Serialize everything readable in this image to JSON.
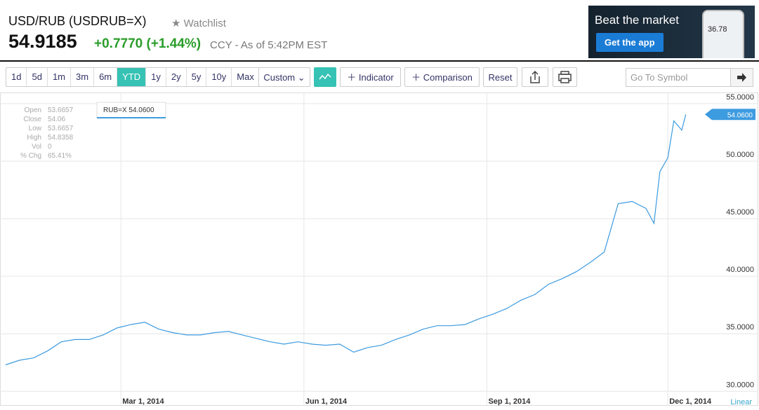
{
  "header": {
    "symbol": "USD/RUB (USDRUB=X)",
    "watchlist": "Watchlist",
    "price": "54.9185",
    "change": "+0.7770",
    "change_pct": "(+1.44%)",
    "meta": "CCY - As of 5:42PM EST"
  },
  "ad": {
    "headline": "Beat the market",
    "button": "Get the app",
    "phone_value": "36.78"
  },
  "toolbar": {
    "ranges": [
      "1d",
      "5d",
      "1m",
      "3m",
      "6m",
      "YTD",
      "1y",
      "2y",
      "5y",
      "10y",
      "Max"
    ],
    "active_range": 5,
    "custom": "Custom",
    "indicator": "Indicator",
    "comparison": "Comparison",
    "reset": "Reset",
    "search_placeholder": "Go To Symbol"
  },
  "info_panel": {
    "labels": [
      "Open",
      "Close",
      "Low",
      "High",
      "Vol",
      "% Chg"
    ],
    "values": [
      "53.6657",
      "54.06",
      "53.6657",
      "54.8358",
      "0",
      "65.41%"
    ]
  },
  "tooltip": "RUB=X 54.0600",
  "chart_data": {
    "type": "line",
    "color": "#3d9be0",
    "x": [
      "2014-01-02",
      "2014-01-09",
      "2014-01-16",
      "2014-01-23",
      "2014-01-30",
      "2014-02-06",
      "2014-02-13",
      "2014-02-20",
      "2014-02-27",
      "2014-03-06",
      "2014-03-13",
      "2014-03-20",
      "2014-03-27",
      "2014-04-03",
      "2014-04-10",
      "2014-04-17",
      "2014-04-24",
      "2014-05-01",
      "2014-05-08",
      "2014-05-15",
      "2014-05-22",
      "2014-05-29",
      "2014-06-05",
      "2014-06-12",
      "2014-06-19",
      "2014-06-26",
      "2014-07-03",
      "2014-07-10",
      "2014-07-17",
      "2014-07-24",
      "2014-07-31",
      "2014-08-07",
      "2014-08-14",
      "2014-08-21",
      "2014-08-28",
      "2014-09-04",
      "2014-09-11",
      "2014-09-18",
      "2014-09-25",
      "2014-10-02",
      "2014-10-09",
      "2014-10-16",
      "2014-10-23",
      "2014-10-30",
      "2014-11-06",
      "2014-11-13",
      "2014-11-20",
      "2014-11-24",
      "2014-11-27",
      "2014-12-01",
      "2014-12-04",
      "2014-12-08",
      "2014-12-10"
    ],
    "values": [
      32.3,
      32.7,
      32.9,
      33.5,
      34.3,
      34.5,
      34.5,
      34.9,
      35.5,
      35.8,
      36.0,
      35.4,
      35.1,
      34.9,
      34.9,
      35.1,
      35.2,
      34.9,
      34.6,
      34.3,
      34.1,
      34.3,
      34.1,
      34.0,
      34.1,
      33.4,
      33.8,
      34.0,
      34.5,
      34.9,
      35.4,
      35.7,
      35.7,
      35.8,
      36.3,
      36.7,
      37.2,
      37.9,
      38.4,
      39.3,
      39.8,
      40.4,
      41.2,
      42.1,
      46.3,
      46.5,
      45.9,
      44.6,
      49.1,
      50.3,
      53.5,
      52.7,
      54.06
    ],
    "current_label": "54.0600",
    "xlim": [
      "2014-01-02",
      "2014-12-26"
    ],
    "xticks": [
      {
        "value": "2014-03-01",
        "label": "Mar 1, 2014"
      },
      {
        "value": "2014-06-01",
        "label": "Jun 1, 2014"
      },
      {
        "value": "2014-09-01",
        "label": "Sep 1, 2014"
      },
      {
        "value": "2014-12-01",
        "label": "Dec 1, 2014"
      }
    ],
    "ylim": [
      28.8,
      55.6
    ],
    "yticks": [
      {
        "value": 30,
        "label": "30.0000"
      },
      {
        "value": 35,
        "label": "35.0000"
      },
      {
        "value": 40,
        "label": "40.0000"
      },
      {
        "value": 45,
        "label": "45.0000"
      },
      {
        "value": 50,
        "label": "50.0000"
      },
      {
        "value": 55,
        "label": "55.0000"
      }
    ],
    "grid": true,
    "scale": "Linear"
  }
}
